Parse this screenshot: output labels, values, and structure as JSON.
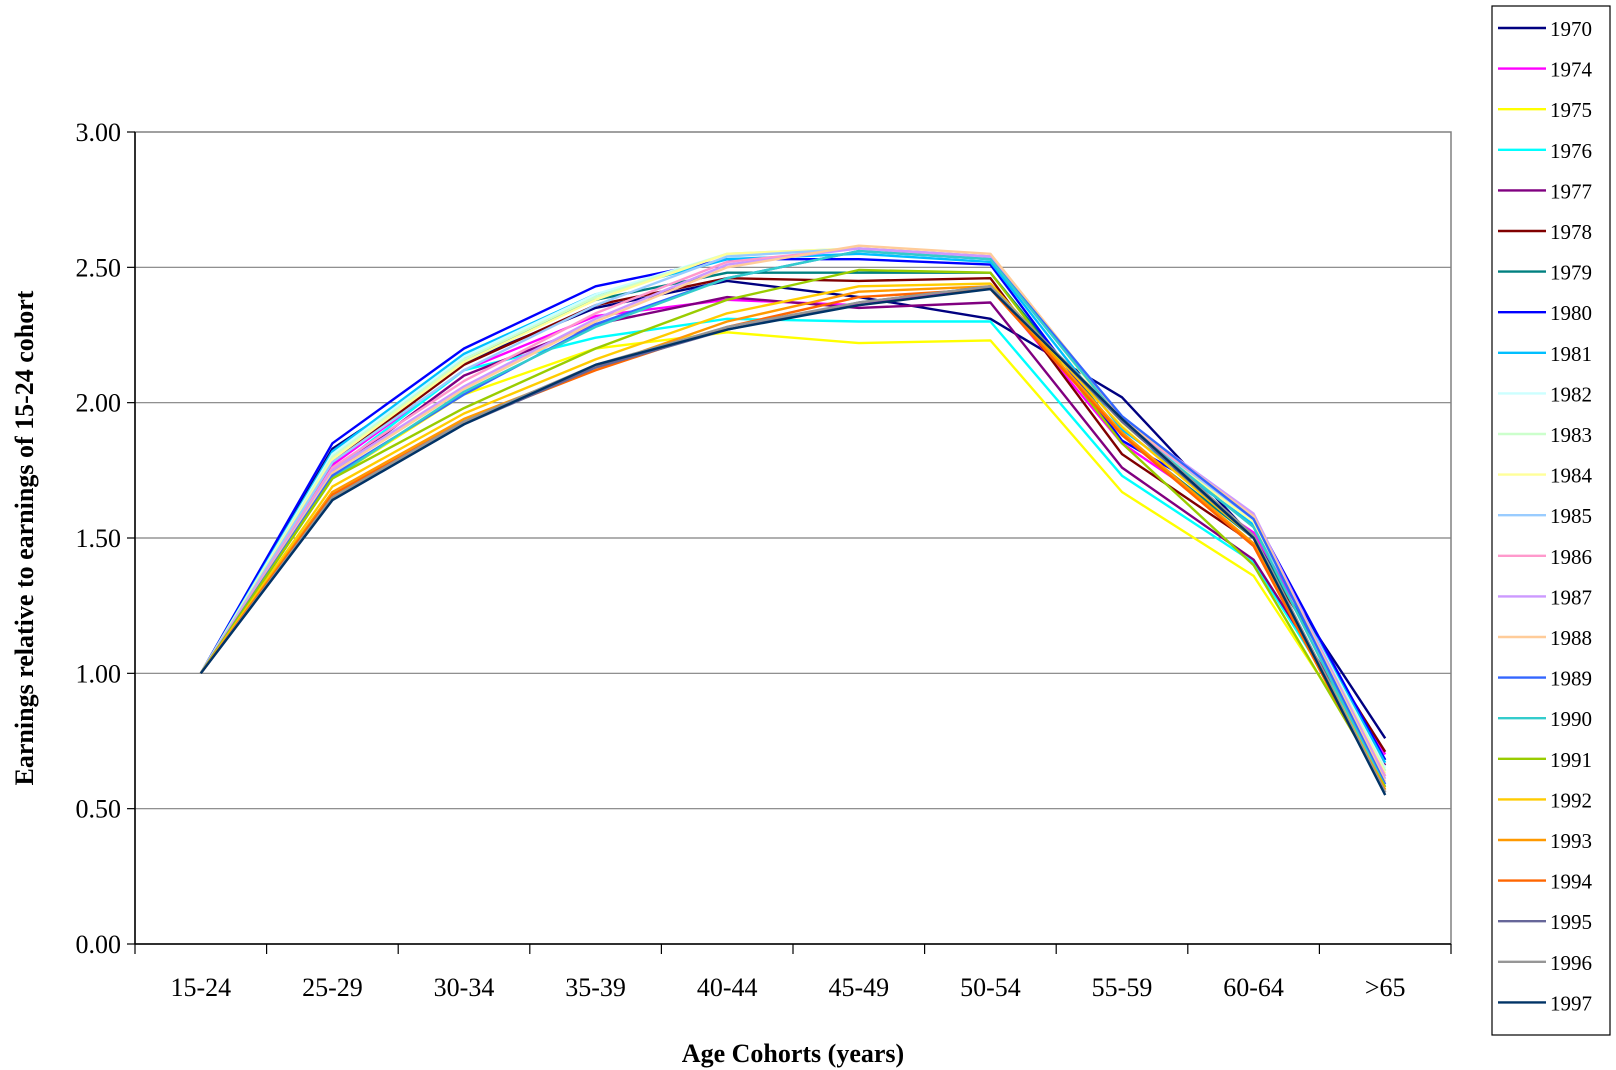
{
  "chart_data": {
    "type": "line",
    "title": "",
    "xlabel": "Age Cohorts (years)",
    "ylabel": "Earnings relative to earnings of 15-24 cohort",
    "categories": [
      "15-24",
      "25-29",
      "30-34",
      "35-39",
      "40-44",
      "45-49",
      "50-54",
      "55-59",
      "60-64",
      ">65"
    ],
    "ylim": [
      0,
      3
    ],
    "yticks": [
      "0.00",
      "0.50",
      "1.00",
      "1.50",
      "2.00",
      "2.50",
      "3.00"
    ],
    "grid": "horizontal",
    "legend_position": "right",
    "series": [
      {
        "name": "1970",
        "color": "#000080",
        "values": [
          1,
          1.83,
          2.15,
          2.35,
          2.45,
          2.39,
          2.31,
          2.02,
          1.5,
          0.76
        ]
      },
      {
        "name": "1974",
        "color": "#ff00ff",
        "values": [
          1,
          1.77,
          2.12,
          2.32,
          2.38,
          2.36,
          2.43,
          1.85,
          1.52,
          0.7
        ]
      },
      {
        "name": "1975",
        "color": "#ffff00",
        "values": [
          1,
          1.72,
          2.03,
          2.2,
          2.26,
          2.22,
          2.23,
          1.67,
          1.36,
          0.62
        ]
      },
      {
        "name": "1976",
        "color": "#00ffff",
        "values": [
          1,
          1.75,
          2.12,
          2.24,
          2.31,
          2.3,
          2.3,
          1.73,
          1.41,
          0.64
        ]
      },
      {
        "name": "1977",
        "color": "#800080",
        "values": [
          1,
          1.74,
          2.1,
          2.29,
          2.39,
          2.35,
          2.37,
          1.76,
          1.42,
          0.66
        ]
      },
      {
        "name": "1978",
        "color": "#800000",
        "values": [
          1,
          1.78,
          2.14,
          2.36,
          2.46,
          2.45,
          2.46,
          1.81,
          1.48,
          0.71
        ]
      },
      {
        "name": "1979",
        "color": "#008080",
        "values": [
          1,
          1.8,
          2.16,
          2.38,
          2.48,
          2.48,
          2.48,
          1.88,
          1.5,
          0.68
        ]
      },
      {
        "name": "1980",
        "color": "#0000ff",
        "values": [
          1,
          1.85,
          2.2,
          2.43,
          2.53,
          2.53,
          2.51,
          1.86,
          1.58,
          0.68
        ]
      },
      {
        "name": "1981",
        "color": "#00bfff",
        "values": [
          1,
          1.82,
          2.18,
          2.4,
          2.53,
          2.55,
          2.52,
          1.9,
          1.55,
          0.67
        ]
      },
      {
        "name": "1982",
        "color": "#ccffff",
        "values": [
          1,
          1.81,
          2.17,
          2.4,
          2.55,
          2.57,
          2.54,
          1.92,
          1.56,
          0.65
        ]
      },
      {
        "name": "1983",
        "color": "#ccffcc",
        "values": [
          1,
          1.8,
          2.16,
          2.39,
          2.55,
          2.57,
          2.54,
          1.92,
          1.56,
          0.64
        ]
      },
      {
        "name": "1984",
        "color": "#ffff99",
        "values": [
          1,
          1.79,
          2.15,
          2.38,
          2.55,
          2.57,
          2.54,
          1.92,
          1.56,
          0.63
        ]
      },
      {
        "name": "1985",
        "color": "#99ccff",
        "values": [
          1,
          1.78,
          2.12,
          2.36,
          2.54,
          2.57,
          2.54,
          1.93,
          1.57,
          0.62
        ]
      },
      {
        "name": "1986",
        "color": "#ff99cc",
        "values": [
          1,
          1.76,
          2.08,
          2.33,
          2.52,
          2.57,
          2.54,
          1.93,
          1.58,
          0.62
        ]
      },
      {
        "name": "1987",
        "color": "#cc99ff",
        "values": [
          1,
          1.75,
          2.06,
          2.31,
          2.51,
          2.57,
          2.54,
          1.94,
          1.59,
          0.61
        ]
      },
      {
        "name": "1988",
        "color": "#ffcc99",
        "values": [
          1,
          1.74,
          2.05,
          2.3,
          2.5,
          2.58,
          2.55,
          1.94,
          1.58,
          0.6
        ]
      },
      {
        "name": "1989",
        "color": "#3366ff",
        "values": [
          1,
          1.73,
          2.03,
          2.29,
          2.46,
          2.56,
          2.53,
          1.95,
          1.57,
          0.59
        ]
      },
      {
        "name": "1990",
        "color": "#33cccc",
        "values": [
          1,
          1.72,
          2.04,
          2.28,
          2.46,
          2.56,
          2.53,
          1.93,
          1.54,
          0.58
        ]
      },
      {
        "name": "1991",
        "color": "#99cc00",
        "values": [
          1,
          1.72,
          1.98,
          2.2,
          2.38,
          2.49,
          2.48,
          1.85,
          1.4,
          0.58
        ]
      },
      {
        "name": "1992",
        "color": "#ffcc00",
        "values": [
          1,
          1.69,
          1.96,
          2.16,
          2.33,
          2.43,
          2.44,
          1.91,
          1.5,
          0.57
        ]
      },
      {
        "name": "1993",
        "color": "#ff9900",
        "values": [
          1,
          1.67,
          1.94,
          2.13,
          2.3,
          2.41,
          2.43,
          1.89,
          1.48,
          0.57
        ]
      },
      {
        "name": "1994",
        "color": "#ff6600",
        "values": [
          1,
          1.66,
          1.93,
          2.12,
          2.28,
          2.39,
          2.42,
          1.88,
          1.47,
          0.56
        ]
      },
      {
        "name": "1995",
        "color": "#666699",
        "values": [
          1,
          1.64,
          1.92,
          2.13,
          2.27,
          2.37,
          2.43,
          1.93,
          1.5,
          0.56
        ]
      },
      {
        "name": "1996",
        "color": "#969696",
        "values": [
          1,
          1.65,
          1.93,
          2.14,
          2.28,
          2.37,
          2.43,
          1.94,
          1.51,
          0.56
        ]
      },
      {
        "name": "1997",
        "color": "#003366",
        "values": [
          1,
          1.64,
          1.92,
          2.14,
          2.27,
          2.36,
          2.42,
          1.94,
          1.5,
          0.55
        ]
      }
    ]
  }
}
